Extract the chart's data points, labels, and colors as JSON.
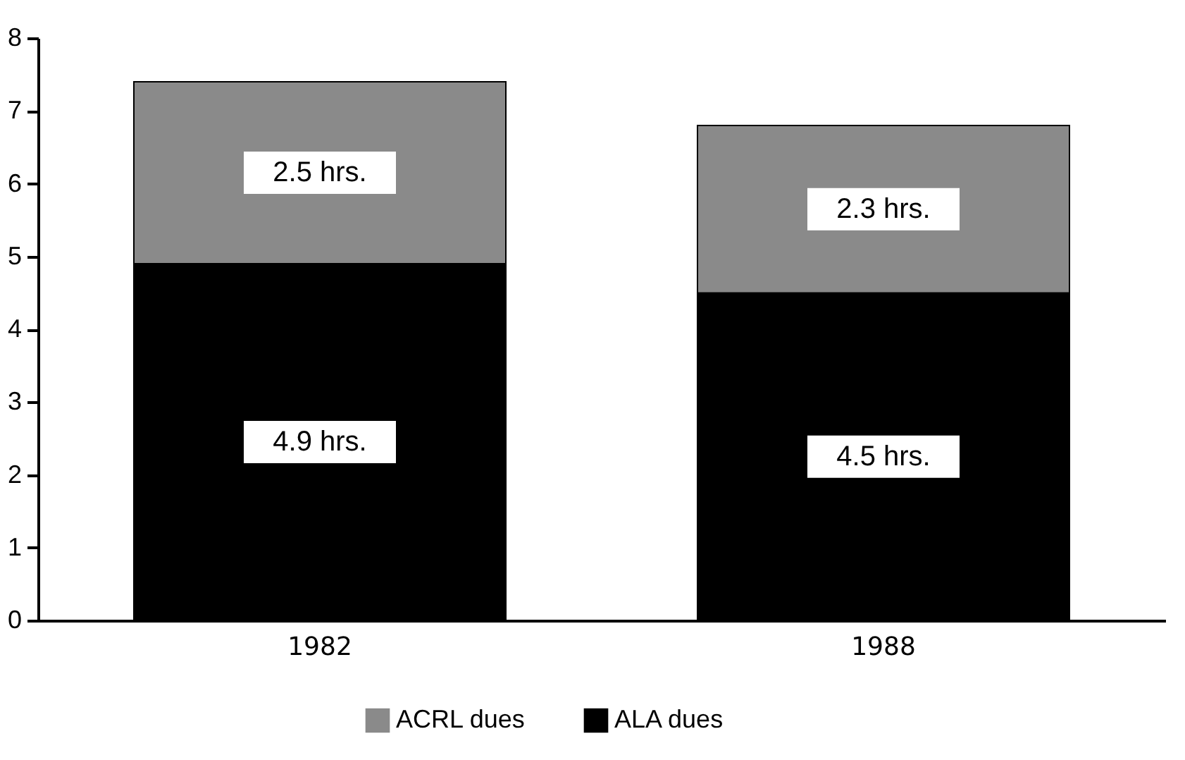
{
  "chart_data": {
    "type": "bar",
    "stacked": true,
    "categories": [
      "1982",
      "1988"
    ],
    "series": [
      {
        "name": "ALA dues",
        "color": "#000000",
        "values": [
          4.9,
          4.5
        ],
        "value_labels": [
          "4.9  hrs.",
          "4.5  hrs."
        ]
      },
      {
        "name": "ACRL dues",
        "color": "#8a8a8a",
        "values": [
          2.5,
          2.3
        ],
        "value_labels": [
          "2.5  hrs.",
          "2.3  hrs."
        ]
      }
    ],
    "ylim": [
      0,
      8
    ],
    "yticks": [
      0,
      1,
      2,
      3,
      4,
      5,
      6,
      7,
      8
    ],
    "grid": false,
    "legend": "bottom"
  }
}
